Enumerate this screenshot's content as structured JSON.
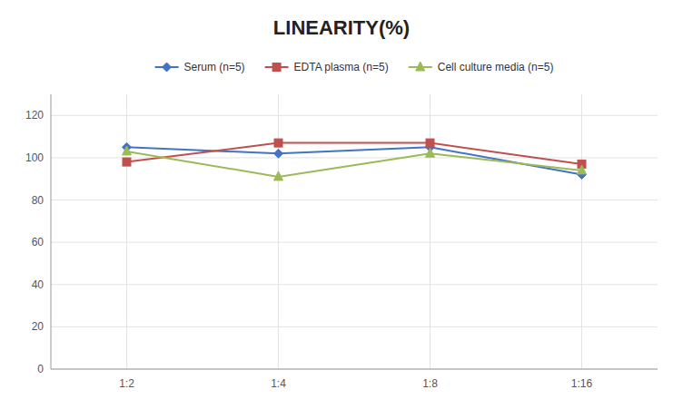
{
  "chart_data": {
    "type": "line",
    "title": "LINEARITY(%)",
    "categories": [
      "1:2",
      "1:4",
      "1:8",
      "1:16"
    ],
    "series": [
      {
        "name": "Serum (n=5)",
        "color": "#4472C4",
        "marker": "diamond",
        "values": [
          105,
          102,
          105,
          92
        ]
      },
      {
        "name": "EDTA plasma (n=5)",
        "color": "#C0504D",
        "marker": "square",
        "values": [
          98,
          107,
          107,
          97
        ]
      },
      {
        "name": "Cell culture media (n=5)",
        "color": "#9BBB59",
        "marker": "triangle",
        "values": [
          103,
          91,
          102,
          94
        ]
      }
    ],
    "ylim": [
      0,
      130
    ],
    "yticks": [
      0,
      20,
      40,
      60,
      80,
      100,
      120
    ],
    "grid": true,
    "legend": "top"
  }
}
